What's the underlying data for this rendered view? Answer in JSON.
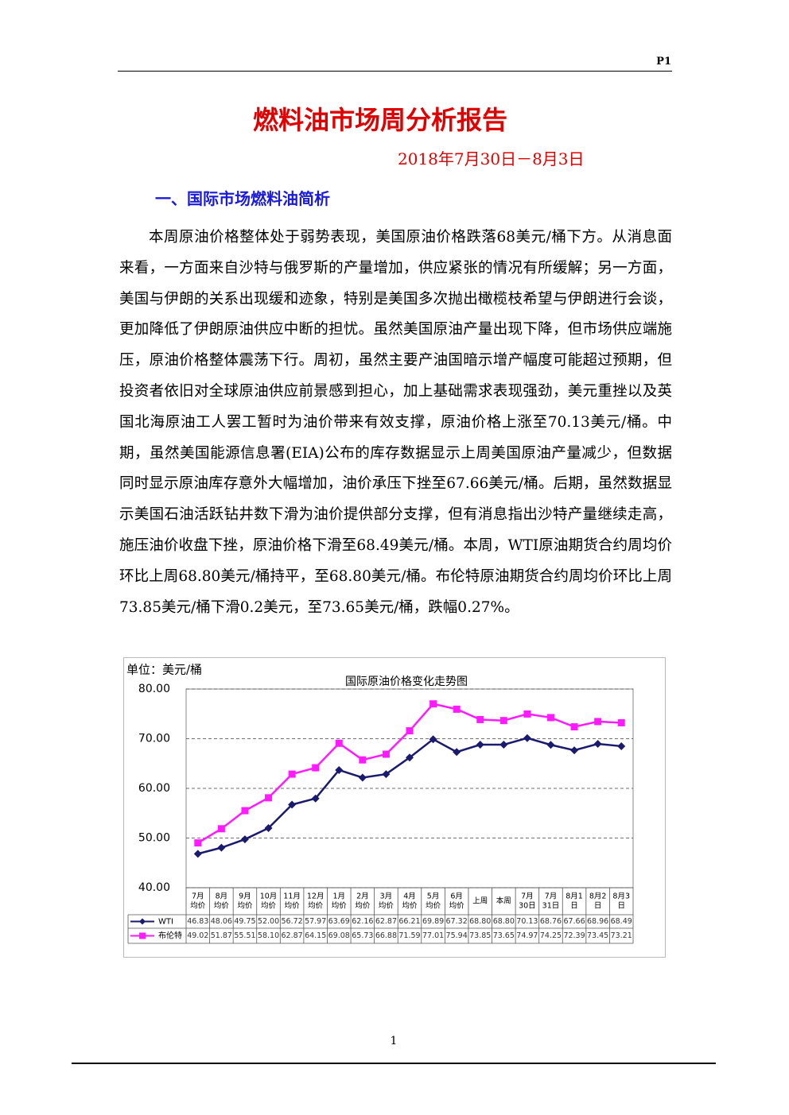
{
  "header": {
    "page": "P1"
  },
  "title": "燃料油市场周分析报告",
  "date": "2018年7月30日－8月3日",
  "section": "一、国际市场燃料油简析",
  "paragraph": "本周原油价格整体处于弱势表现，美国原油价格跌落68美元/桶下方。从消息面来看，一方面来自沙特与俄罗斯的产量增加，供应紧张的情况有所缓解；另一方面，美国与伊朗的关系出现缓和迹象，特别是美国多次抛出橄榄枝希望与伊朗进行会谈，更加降低了伊朗原油供应中断的担忧。虽然美国原油产量出现下降，但市场供应端施压，原油价格整体震荡下行。周初，虽然主要产油国暗示增产幅度可能超过预期，但投资者依旧对全球原油供应前景感到担心，加上基础需求表现强劲，美元重挫以及英国北海原油工人罢工暂时为油价带来有效支撑，原油价格上涨至70.13美元/桶。中期，虽然美国能源信息署(EIA)公布的库存数据显示上周美国原油产量减少，但数据同时显示原油库存意外大幅增加，油价承压下挫至67.66美元/桶。后期，虽然数据显示美国石油活跃钻井数下滑为油价提供部分支撑，但有消息指出沙特产量继续走高，施压油价收盘下挫，原油价格下滑至68.49美元/桶。本周，WTI原油期货合约周均价环比上周68.80美元/桶持平，至68.80美元/桶。布伦特原油期货合约周均价环比上周73.85美元/桶下滑0.2美元，至73.65美元/桶，跌幅0.27%。",
  "chart_data": {
    "type": "line",
    "unit": "单位：美元/桶",
    "title": "国际原油价格变化走势图",
    "categories": [
      [
        "7月",
        "均价"
      ],
      [
        "8月",
        "均价"
      ],
      [
        "9月",
        "均价"
      ],
      [
        "10月",
        "均价"
      ],
      [
        "11月",
        "均价"
      ],
      [
        "12月",
        "均价"
      ],
      [
        "1月",
        "均价"
      ],
      [
        "2月",
        "均价"
      ],
      [
        "3月",
        "均价"
      ],
      [
        "4月",
        "均价"
      ],
      [
        "5月",
        "均价"
      ],
      [
        "6月",
        "均价"
      ],
      [
        "上周"
      ],
      [
        "本周"
      ],
      [
        "7月",
        "30日"
      ],
      [
        "7月",
        "31日"
      ],
      [
        "8月1",
        "日"
      ],
      [
        "8月2",
        "日"
      ],
      [
        "8月3",
        "日"
      ]
    ],
    "series": [
      {
        "name": "WTI",
        "color": "#1a1a6e",
        "marker": "diamond",
        "values": [
          46.83,
          48.06,
          49.75,
          52.0,
          56.72,
          57.97,
          63.69,
          62.16,
          62.87,
          66.21,
          69.89,
          67.32,
          68.8,
          68.8,
          70.13,
          68.76,
          67.66,
          68.96,
          68.49
        ],
        "value_labels": [
          "46.83",
          "48.06",
          "49.75",
          "52.00",
          "56.72",
          "57.97",
          "63.69",
          "62.16",
          "62.87",
          "66.21",
          "69.89",
          "67.32",
          "68.80",
          "68.80",
          "70.13",
          "68.76",
          "67.66",
          "68.96",
          "68.49"
        ]
      },
      {
        "name": "布伦特",
        "color": "#ff1aff",
        "marker": "square",
        "values": [
          49.02,
          51.87,
          55.51,
          58.1,
          62.87,
          64.15,
          69.08,
          65.73,
          66.88,
          71.59,
          77.01,
          75.94,
          73.85,
          73.65,
          74.97,
          74.25,
          72.39,
          73.45,
          73.21
        ],
        "value_labels": [
          "49.02",
          "51.87",
          "55.51",
          "58.10",
          "62.87",
          "64.15",
          "69.08",
          "65.73",
          "66.88",
          "71.59",
          "77.01",
          "75.94",
          "73.85",
          "73.65",
          "74.97",
          "74.25",
          "72.39",
          "73.45",
          "73.21"
        ]
      }
    ],
    "ylim": [
      40,
      80
    ],
    "yticks": [
      {
        "value": 40,
        "label": "40.00"
      },
      {
        "value": 50,
        "label": "50.00"
      },
      {
        "value": 60,
        "label": "60.00"
      },
      {
        "value": 70,
        "label": "70.00"
      },
      {
        "value": 80,
        "label": "80.00"
      }
    ],
    "grid": true
  },
  "footer": {
    "page": "1"
  }
}
